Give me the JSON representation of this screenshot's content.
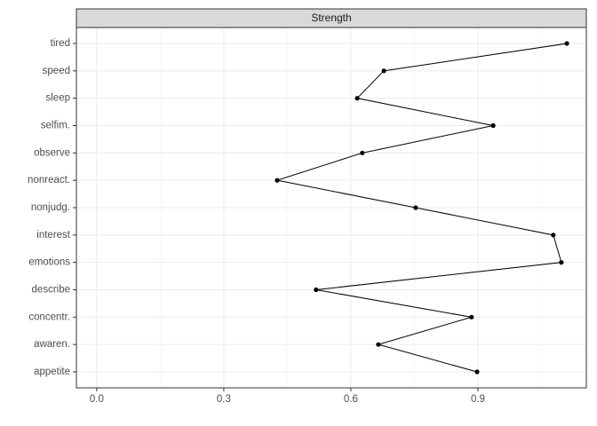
{
  "chart_data": {
    "type": "line",
    "orientation": "horizontal",
    "panel_title": "Strength",
    "categories": [
      "tired",
      "speed",
      "sleep",
      "selfim.",
      "observe",
      "nonreact.",
      "nonjudg.",
      "interest",
      "emotions",
      "describe",
      "concentr.",
      "awaren.",
      "appetite"
    ],
    "values": [
      1.11,
      0.678,
      0.615,
      0.936,
      0.627,
      0.426,
      0.753,
      1.078,
      1.097,
      0.518,
      0.885,
      0.665,
      0.898
    ],
    "color": "#000000",
    "xlim": [
      -0.048,
      1.156
    ],
    "xticks": [
      {
        "value": 0,
        "label": "0.0"
      },
      0.3,
      0.6,
      0.9
    ],
    "grid": true
  }
}
